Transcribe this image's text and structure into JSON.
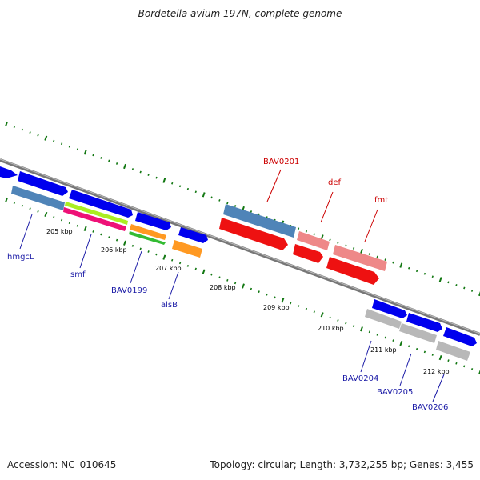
{
  "title": "Bordetella avium 197N, complete genome",
  "footer": {
    "accession": "Accession: NC_010645",
    "summary": "Topology: circular; Length: 3,732,255 bp; Genes: 3,455"
  },
  "colors": {
    "label_blue": "#1a1aa6",
    "label_red": "#cc0000",
    "tick_green": "#117711",
    "backbone": "#777777"
  },
  "chart_data": {
    "type": "genome-map",
    "tick_labels": [
      "205 kbp",
      "206 kbp",
      "207 kbp",
      "208 kbp",
      "209 kbp",
      "210 kbp",
      "211 kbp",
      "212 kbp"
    ],
    "gene_labels": [
      {
        "name": "hmgcL",
        "color": "blue"
      },
      {
        "name": "smf",
        "color": "blue"
      },
      {
        "name": "BAV0199",
        "color": "blue"
      },
      {
        "name": "alsB",
        "color": "blue"
      },
      {
        "name": "BAV0201",
        "color": "red"
      },
      {
        "name": "def",
        "color": "red"
      },
      {
        "name": "fmt",
        "color": "red"
      },
      {
        "name": "BAV0204",
        "color": "blue"
      },
      {
        "name": "BAV0205",
        "color": "blue"
      },
      {
        "name": "BAV0206",
        "color": "blue"
      }
    ]
  }
}
